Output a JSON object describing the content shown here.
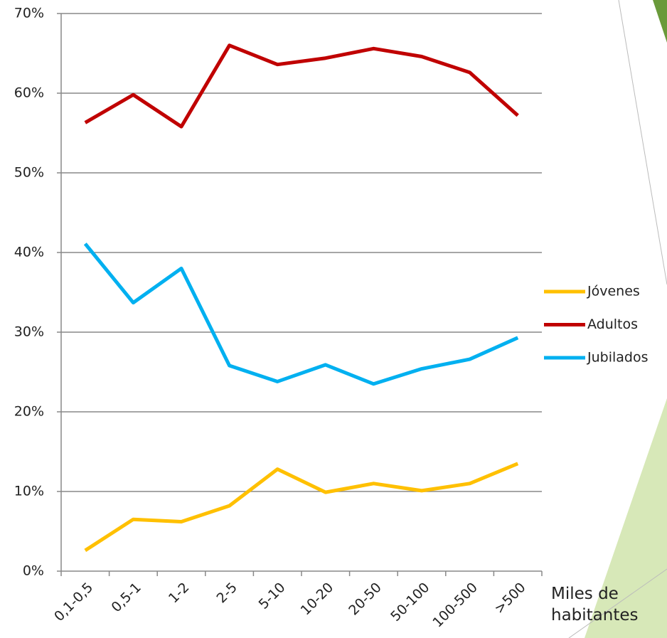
{
  "chart_data": {
    "type": "line",
    "x_label": "Miles de habitantes",
    "categories": [
      "0,1-0,5",
      "0,5-1",
      "1-2",
      "2-5",
      "5-10",
      "10-20",
      "20-50",
      "50-100",
      "100-500",
      ">500"
    ],
    "series": [
      {
        "name": "Jóvenes",
        "color": "#ffc000",
        "values": [
          2.6,
          6.5,
          6.2,
          8.2,
          12.8,
          9.9,
          11.0,
          10.1,
          11.0,
          13.5
        ]
      },
      {
        "name": "Adultos",
        "color": "#c00000",
        "values": [
          56.3,
          59.8,
          55.8,
          66.0,
          63.6,
          64.4,
          65.6,
          64.6,
          62.6,
          57.2
        ]
      },
      {
        "name": "Jubilados",
        "color": "#00b0f0",
        "values": [
          41.1,
          33.7,
          38.0,
          25.8,
          23.8,
          25.9,
          23.5,
          25.4,
          26.6,
          29.3
        ]
      }
    ],
    "ylim": [
      0,
      70
    ],
    "yticks": [
      {
        "value": 0,
        "label": "0%"
      },
      {
        "value": 10,
        "label": "10%"
      },
      {
        "value": 20,
        "label": "20%"
      },
      {
        "value": 30,
        "label": "30%"
      },
      {
        "value": 40,
        "label": "40%"
      },
      {
        "value": 50,
        "label": "50%"
      },
      {
        "value": 60,
        "label": "60%"
      },
      {
        "value": 70,
        "label": "70%"
      }
    ],
    "grid": true,
    "legend": "right"
  }
}
